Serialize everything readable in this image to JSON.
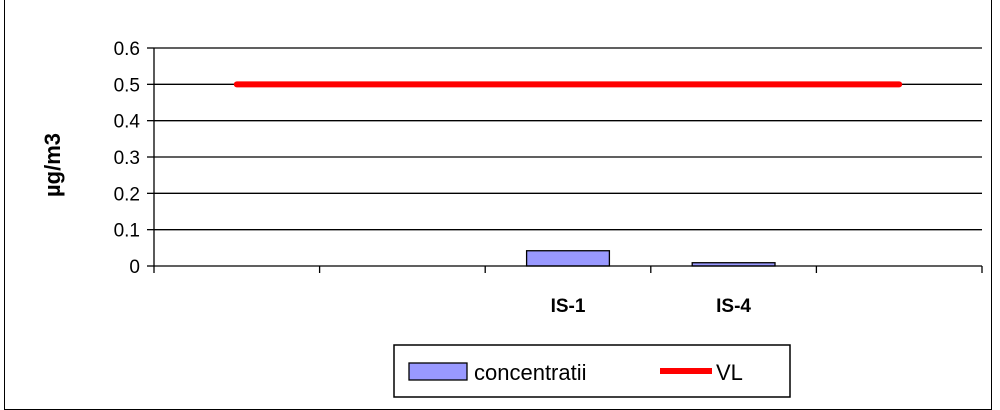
{
  "chart_data": {
    "type": "bar",
    "title": "",
    "xlabel": "",
    "ylabel": "µg/m3",
    "ylim": [
      0,
      0.6
    ],
    "yticks": [
      "0",
      "0.1",
      "0.2",
      "0.3",
      "0.4",
      "0.5",
      "0.6"
    ],
    "grid": true,
    "legend_position": "bottom",
    "categories": [
      "",
      "",
      "IS-1",
      "IS-4",
      ""
    ],
    "series": [
      {
        "name": "concentratii",
        "type": "bar",
        "color": "#9999ff",
        "values": [
          null,
          null,
          0.042,
          0.009,
          null
        ]
      },
      {
        "name": "VL",
        "type": "line",
        "color": "#ff0000",
        "values": [
          0.5,
          0.5,
          0.5,
          0.5,
          0.5
        ]
      }
    ]
  }
}
